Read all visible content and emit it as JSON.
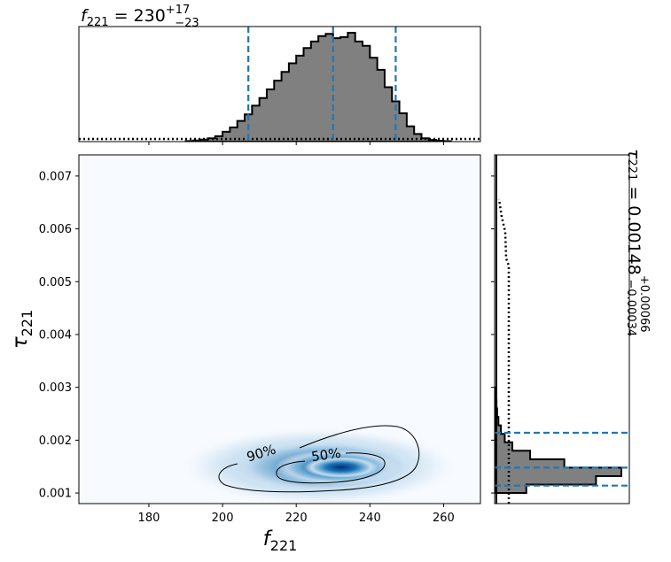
{
  "chart_data": {
    "type": "corner",
    "x_param": {
      "label_main": "f",
      "label_sub": "221",
      "median_text": "230",
      "upper_err": "+17",
      "lower_err": "−23",
      "median": 230,
      "credible_interval": [
        207,
        247
      ],
      "xlim": [
        161,
        270
      ],
      "ticks": [
        180,
        200,
        220,
        240,
        260
      ],
      "tick_labels": [
        "180",
        "200",
        "220",
        "240",
        "260"
      ]
    },
    "y_param": {
      "label_main": "τ",
      "label_sub": "221",
      "median_text": "0.00148",
      "upper_err": "+0.00066",
      "lower_err": "−0.00034",
      "median": 0.00148,
      "credible_interval": [
        0.00114,
        0.00214
      ],
      "ylim": [
        0.0008,
        0.0074
      ],
      "ticks": [
        0.001,
        0.002,
        0.003,
        0.004,
        0.005,
        0.006,
        0.007
      ],
      "tick_labels": [
        "0.001",
        "0.002",
        "0.003",
        "0.004",
        "0.005",
        "0.006",
        "0.007"
      ]
    },
    "x_marginal": {
      "type": "histogram",
      "bin_edges": [
        190,
        192,
        194,
        196,
        198,
        200,
        202,
        204,
        206,
        208,
        210,
        212,
        214,
        216,
        218,
        220,
        222,
        224,
        226,
        228,
        230,
        232,
        234,
        236,
        238,
        240,
        242,
        244,
        246,
        248,
        250,
        252,
        254,
        256,
        258,
        260,
        262
      ],
      "values": [
        0.005,
        0.01,
        0.018,
        0.03,
        0.05,
        0.09,
        0.13,
        0.19,
        0.25,
        0.33,
        0.4,
        0.48,
        0.56,
        0.64,
        0.72,
        0.79,
        0.86,
        0.92,
        0.97,
        0.99,
        0.95,
        0.96,
        1.0,
        0.92,
        0.88,
        0.77,
        0.66,
        0.5,
        0.37,
        0.26,
        0.14,
        0.07,
        0.03,
        0.015,
        0.008,
        0.004
      ],
      "prior": "flat (dotted)",
      "quantile_lines": [
        207,
        230,
        247
      ]
    },
    "y_marginal": {
      "type": "histogram",
      "orientation": "horizontal",
      "bin_edges": [
        0.001,
        0.00116,
        0.00132,
        0.00148,
        0.00164,
        0.0018,
        0.00196,
        0.00212,
        0.00228,
        0.00244,
        0.0026,
        0.00276,
        0.003
      ],
      "values": [
        0.25,
        0.8,
        1.0,
        0.55,
        0.28,
        0.14,
        0.08,
        0.05,
        0.03,
        0.02,
        0.015,
        0.01
      ],
      "prior": "dotted",
      "quantile_lines": [
        0.00114,
        0.00148,
        0.00214
      ]
    },
    "joint": {
      "type": "heatmap",
      "colormap": "Blues",
      "peak": [
        232,
        0.00145
      ],
      "contours": [
        {
          "label": "50%",
          "level": 0.5
        },
        {
          "label": "90%",
          "level": 0.9
        }
      ]
    },
    "colors": {
      "hist_fill": "#808080",
      "quantile_line": "#1f77b4",
      "heatmap_low": "#f7fbff",
      "heatmap_high": "#08306b"
    }
  }
}
